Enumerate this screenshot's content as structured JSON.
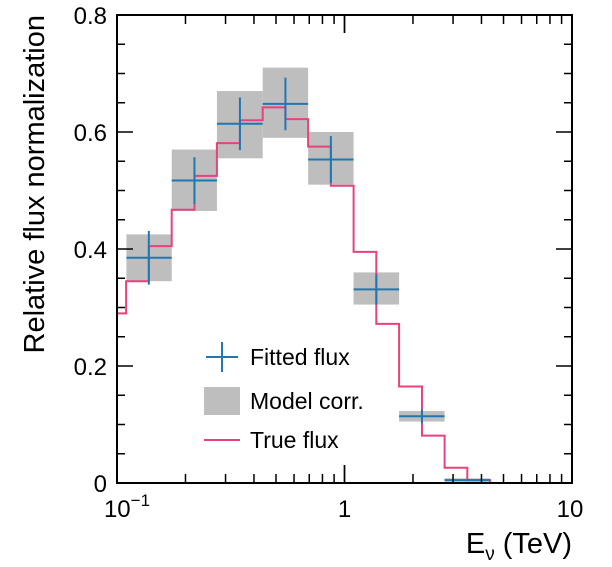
{
  "chart_data": {
    "type": "histogram",
    "xlabel": "E",
    "xlabel_subscript": "ν",
    "xlabel_unit": "(TeV)",
    "ylabel": "Relative flux normalization",
    "x_scale": "log",
    "xlim": [
      0.1,
      10
    ],
    "ylim": [
      0,
      0.8
    ],
    "x_ticks": [
      {
        "value": 0.1,
        "label": "10",
        "sup": "−1"
      },
      {
        "value": 1,
        "label": "1",
        "sup": ""
      },
      {
        "value": 10,
        "label": "10",
        "sup": ""
      }
    ],
    "y_ticks": [
      {
        "value": 0,
        "label": "0"
      },
      {
        "value": 0.2,
        "label": "0.2"
      },
      {
        "value": 0.4,
        "label": "0.4"
      },
      {
        "value": 0.6,
        "label": "0.6"
      },
      {
        "value": 0.8,
        "label": "0.8"
      }
    ],
    "legend_position": "bottom-center",
    "fitted_flux": {
      "name": "Fitted flux",
      "color": "#1f77b4",
      "points": [
        {
          "x": 0.138,
          "xlo": 0.11,
          "xhi": 0.174,
          "y": 0.385,
          "yerr": 0.046
        },
        {
          "x": 0.219,
          "xlo": 0.174,
          "xhi": 0.275,
          "y": 0.517,
          "yerr": 0.04
        },
        {
          "x": 0.347,
          "xlo": 0.275,
          "xhi": 0.437,
          "y": 0.614,
          "yerr": 0.045
        },
        {
          "x": 0.55,
          "xlo": 0.437,
          "xhi": 0.692,
          "y": 0.648,
          "yerr": 0.045
        },
        {
          "x": 0.871,
          "xlo": 0.692,
          "xhi": 1.096,
          "y": 0.553,
          "yerr": 0.04
        },
        {
          "x": 1.38,
          "xlo": 1.096,
          "xhi": 1.738,
          "y": 0.331,
          "yerr": 0.026
        },
        {
          "x": 2.19,
          "xlo": 1.738,
          "xhi": 2.754,
          "y": 0.114,
          "yerr": 0.012
        },
        {
          "x": 3.47,
          "xlo": 2.754,
          "xhi": 4.365,
          "y": 0.005,
          "yerr": 0.002
        }
      ]
    },
    "model_corr": {
      "name": "Model corr.",
      "color": "#bebebe",
      "boxes": [
        {
          "xlo": 0.11,
          "xhi": 0.174,
          "ylo": 0.345,
          "yhi": 0.425
        },
        {
          "xlo": 0.174,
          "xhi": 0.275,
          "ylo": 0.465,
          "yhi": 0.57
        },
        {
          "xlo": 0.275,
          "xhi": 0.437,
          "ylo": 0.555,
          "yhi": 0.67
        },
        {
          "xlo": 0.437,
          "xhi": 0.692,
          "ylo": 0.59,
          "yhi": 0.71
        },
        {
          "xlo": 0.692,
          "xhi": 1.096,
          "ylo": 0.51,
          "yhi": 0.6
        },
        {
          "xlo": 1.096,
          "xhi": 1.738,
          "ylo": 0.305,
          "yhi": 0.36
        },
        {
          "xlo": 1.738,
          "xhi": 2.754,
          "ylo": 0.105,
          "yhi": 0.123
        },
        {
          "xlo": 2.754,
          "xhi": 4.365,
          "ylo": 0.002,
          "yhi": 0.008
        }
      ]
    },
    "true_flux": {
      "name": "True flux",
      "color": "#e8427e",
      "edges": [
        0.1,
        0.1096,
        0.138,
        0.174,
        0.219,
        0.275,
        0.347,
        0.437,
        0.55,
        0.692,
        0.871,
        1.096,
        1.38,
        1.738,
        2.19,
        2.754,
        3.467,
        4.365
      ],
      "values": [
        0.29,
        0.345,
        0.405,
        0.467,
        0.525,
        0.581,
        0.62,
        0.642,
        0.622,
        0.575,
        0.508,
        0.395,
        0.272,
        0.165,
        0.081,
        0.026,
        0.005
      ]
    }
  }
}
